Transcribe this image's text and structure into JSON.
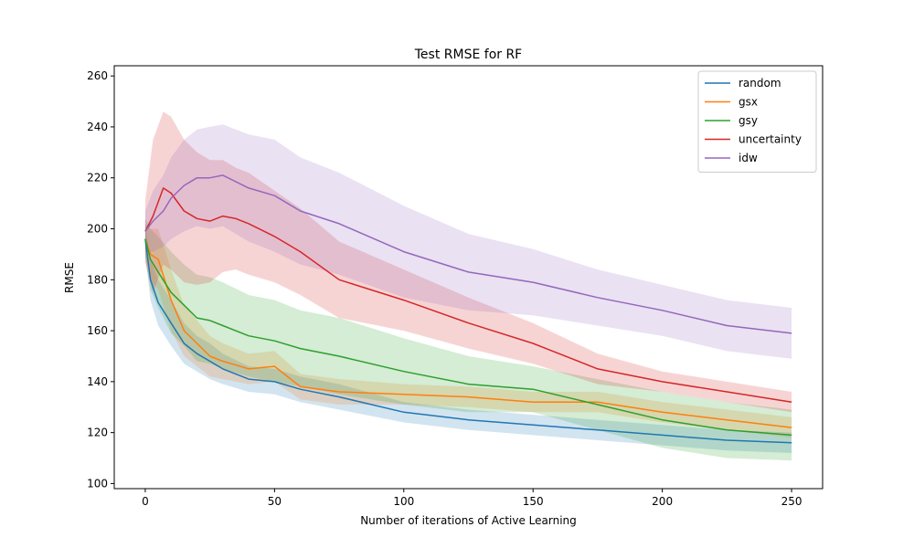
{
  "chart_data": {
    "type": "line",
    "title": "Test RMSE for RF",
    "xlabel": "Number of iterations of Active Learning",
    "ylabel": "RMSE",
    "xlim": [
      -12,
      262
    ],
    "ylim": [
      98,
      264
    ],
    "xticks": [
      0,
      50,
      100,
      150,
      200,
      250
    ],
    "yticks": [
      100,
      120,
      140,
      160,
      180,
      200,
      220,
      240,
      260
    ],
    "legend_position": "top-right",
    "grid": false,
    "series": [
      {
        "name": "random",
        "color": "#1f77b4",
        "x": [
          0,
          2,
          5,
          10,
          15,
          20,
          25,
          30,
          40,
          50,
          60,
          75,
          100,
          125,
          150,
          175,
          200,
          225,
          250
        ],
        "y": [
          196,
          180,
          171,
          163,
          155,
          151,
          148,
          145,
          141,
          140,
          137,
          134,
          128,
          125,
          123,
          121,
          119,
          117,
          116
        ],
        "band": [
          6,
          8,
          9,
          9,
          8,
          7,
          7,
          6,
          5,
          5,
          5,
          5,
          4,
          4,
          4,
          4,
          4,
          4,
          4
        ]
      },
      {
        "name": "gsx",
        "color": "#ff7f0e",
        "x": [
          0,
          2,
          5,
          10,
          15,
          20,
          25,
          30,
          40,
          50,
          60,
          75,
          100,
          125,
          150,
          175,
          200,
          225,
          250
        ],
        "y": [
          196,
          190,
          188,
          172,
          160,
          155,
          150,
          148,
          145,
          146,
          138,
          136,
          135,
          134,
          132,
          132,
          128,
          125,
          122
        ],
        "band": [
          6,
          10,
          12,
          12,
          10,
          9,
          8,
          7,
          6,
          6,
          5,
          5,
          4,
          4,
          4,
          4,
          4,
          4,
          4
        ]
      },
      {
        "name": "gsy",
        "color": "#2ca02c",
        "x": [
          0,
          2,
          5,
          10,
          15,
          20,
          25,
          30,
          40,
          50,
          60,
          75,
          100,
          125,
          150,
          175,
          200,
          225,
          250
        ],
        "y": [
          196,
          188,
          183,
          175,
          170,
          165,
          164,
          162,
          158,
          156,
          153,
          150,
          144,
          139,
          137,
          131,
          125,
          121,
          119
        ],
        "band": [
          8,
          12,
          14,
          16,
          16,
          17,
          17,
          17,
          16,
          16,
          15,
          15,
          13,
          11,
          9,
          10,
          11,
          11,
          10
        ]
      },
      {
        "name": "uncertainty",
        "color": "#d62728",
        "x": [
          0,
          3,
          7,
          10,
          15,
          20,
          25,
          30,
          35,
          40,
          50,
          60,
          75,
          100,
          125,
          150,
          175,
          200,
          225,
          250
        ],
        "y": [
          199,
          205,
          216,
          214,
          207,
          204,
          203,
          205,
          204,
          202,
          197,
          191,
          180,
          172,
          163,
          155,
          145,
          140,
          136,
          132
        ],
        "band": [
          12,
          30,
          30,
          30,
          28,
          26,
          24,
          22,
          20,
          20,
          18,
          17,
          15,
          12,
          10,
          8,
          6,
          4,
          4,
          4
        ]
      },
      {
        "name": "idw",
        "color": "#9467bd",
        "x": [
          0,
          3,
          7,
          10,
          15,
          20,
          25,
          30,
          40,
          50,
          60,
          75,
          100,
          125,
          150,
          175,
          200,
          225,
          250
        ],
        "y": [
          199,
          203,
          207,
          212,
          217,
          220,
          220,
          221,
          216,
          213,
          207,
          202,
          191,
          183,
          179,
          173,
          168,
          162,
          159
        ],
        "band": [
          8,
          12,
          14,
          16,
          18,
          19,
          20,
          20,
          21,
          22,
          21,
          20,
          18,
          15,
          13,
          11,
          10,
          10,
          10
        ]
      }
    ]
  }
}
